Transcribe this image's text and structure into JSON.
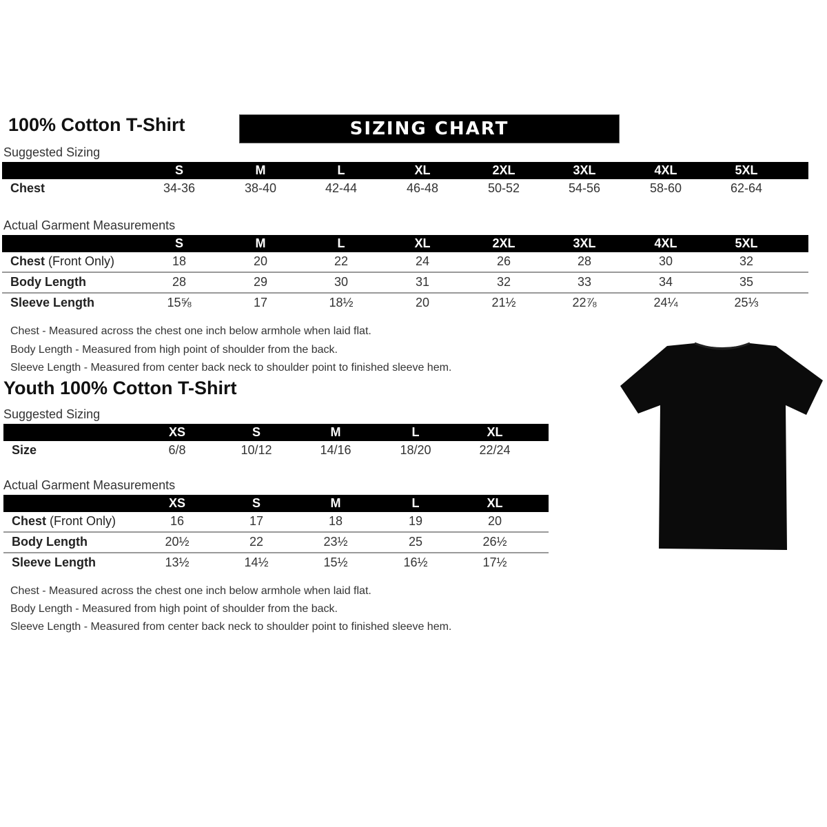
{
  "title": "100% Cotton T-Shirt",
  "banner": "SIZING CHART",
  "adult": {
    "suggested_label": "Suggested Sizing",
    "sizes": [
      "S",
      "M",
      "L",
      "XL",
      "2XL",
      "3XL",
      "4XL",
      "5XL"
    ],
    "suggested_rows": [
      {
        "label": "Chest",
        "values": [
          "34-36",
          "38-40",
          "42-44",
          "46-48",
          "50-52",
          "54-56",
          "58-60",
          "62-64"
        ]
      }
    ],
    "actual_label": "Actual Garment Measurements",
    "actual_rows": [
      {
        "label": "Chest",
        "label_note": " (Front Only)",
        "values": [
          "18",
          "20",
          "22",
          "24",
          "26",
          "28",
          "30",
          "32"
        ]
      },
      {
        "label": "Body Length",
        "values": [
          "28",
          "29",
          "30",
          "31",
          "32",
          "33",
          "34",
          "35"
        ]
      },
      {
        "label": "Sleeve Length",
        "values": [
          "15⅝",
          "17",
          "18½",
          "20",
          "21½",
          "22⅞",
          "24¼",
          "25⅓"
        ]
      }
    ],
    "notes": [
      "Chest - Measured across the chest one inch below armhole when laid flat.",
      "Body Length - Measured from high point of shoulder from the back.",
      "Sleeve Length - Measured from center back neck to shoulder point to finished sleeve hem."
    ]
  },
  "youth": {
    "title": "Youth 100% Cotton T-Shirt",
    "suggested_label": "Suggested Sizing",
    "sizes": [
      "XS",
      "S",
      "M",
      "L",
      "XL"
    ],
    "suggested_rows": [
      {
        "label": "Size",
        "values": [
          "6/8",
          "10/12",
          "14/16",
          "18/20",
          "22/24"
        ]
      }
    ],
    "actual_label": "Actual Garment Measurements",
    "actual_rows": [
      {
        "label": "Chest",
        "label_note": " (Front Only)",
        "values": [
          "16",
          "17",
          "18",
          "19",
          "20"
        ]
      },
      {
        "label": "Body Length",
        "values": [
          "20½",
          "22",
          "23½",
          "25",
          "26½"
        ]
      },
      {
        "label": "Sleeve Length",
        "values": [
          "13½",
          "14½",
          "15½",
          "16½",
          "17½"
        ]
      }
    ],
    "notes": [
      "Chest - Measured across the chest one inch below armhole when laid flat.",
      "Body Length - Measured from high point of shoulder from the back.",
      "Sleeve Length - Measured from center back neck to shoulder point to finished sleeve hem."
    ]
  },
  "image": {
    "icon": "tshirt-icon",
    "color": "#000000"
  }
}
